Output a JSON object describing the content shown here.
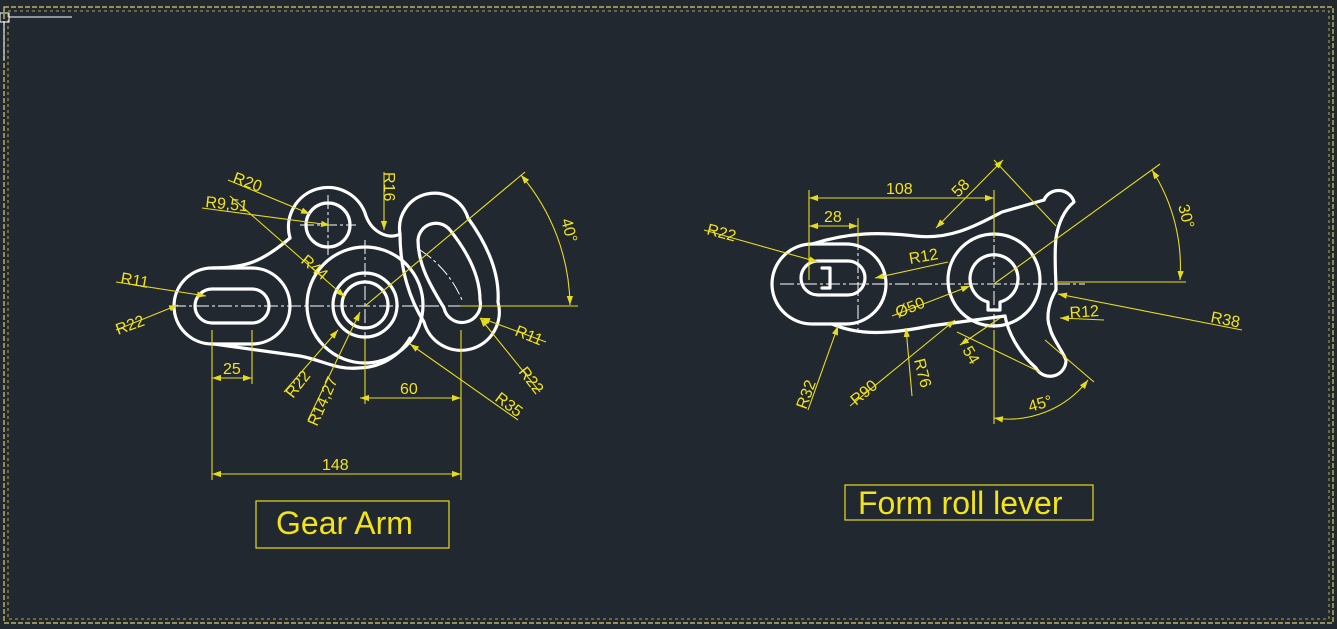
{
  "drawings": [
    {
      "title": "Gear Arm",
      "dimensions": [
        "R20",
        "R9,51",
        "R16",
        "40°",
        "R44",
        "R11",
        "R22",
        "25",
        "R22",
        "R14,27",
        "60",
        "R11",
        "R22",
        "R35",
        "148"
      ]
    },
    {
      "title": "Form roll lever",
      "dimensions": [
        "108",
        "58",
        "28",
        "R22",
        "R12",
        "30°",
        "Ø50",
        "R12",
        "R38",
        "R32",
        "R90",
        "R76",
        "54",
        "45°"
      ]
    }
  ],
  "colors": {
    "background": "#212830",
    "annotation": "#f2e31a",
    "geometry": "#ffffff"
  }
}
